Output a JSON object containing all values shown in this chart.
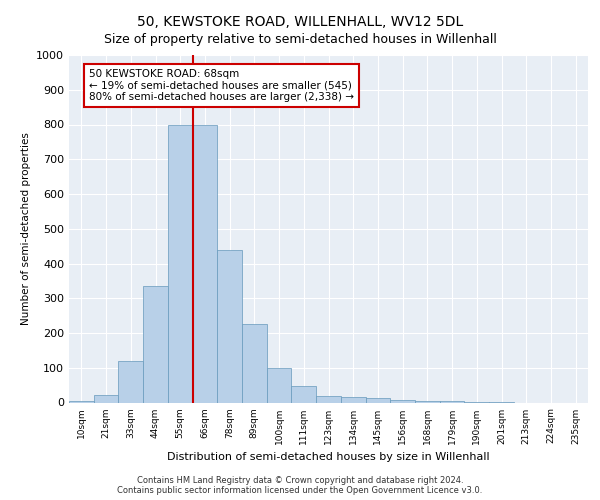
{
  "title_line1": "50, KEWSTOKE ROAD, WILLENHALL, WV12 5DL",
  "title_line2": "Size of property relative to semi-detached houses in Willenhall",
  "xlabel": "Distribution of semi-detached houses by size in Willenhall",
  "ylabel": "Number of semi-detached properties",
  "footer_line1": "Contains HM Land Registry data © Crown copyright and database right 2024.",
  "footer_line2": "Contains public sector information licensed under the Open Government Licence v3.0.",
  "annotation_title": "50 KEWSTOKE ROAD: 68sqm",
  "annotation_line1": "← 19% of semi-detached houses are smaller (545)",
  "annotation_line2": "80% of semi-detached houses are larger (2,338) →",
  "bar_categories": [
    "10sqm",
    "21sqm",
    "33sqm",
    "44sqm",
    "55sqm",
    "66sqm",
    "78sqm",
    "89sqm",
    "100sqm",
    "111sqm",
    "123sqm",
    "134sqm",
    "145sqm",
    "156sqm",
    "168sqm",
    "179sqm",
    "190sqm",
    "201sqm",
    "213sqm",
    "224sqm",
    "235sqm"
  ],
  "bar_heights": [
    5,
    22,
    120,
    335,
    800,
    800,
    440,
    225,
    100,
    48,
    20,
    15,
    12,
    8,
    5,
    3,
    2,
    1,
    0,
    0,
    0
  ],
  "bar_color": "#b8d0e8",
  "bar_edge_color": "#6699bb",
  "vline_color": "#cc0000",
  "annotation_box_color": "#cc0000",
  "bg_color": "#e8eef5",
  "grid_color": "#ffffff",
  "ylim": [
    0,
    1000
  ],
  "yticks": [
    0,
    100,
    200,
    300,
    400,
    500,
    600,
    700,
    800,
    900,
    1000
  ],
  "vline_index": 5,
  "title1_fontsize": 10,
  "title2_fontsize": 9,
  "title1_bold": false
}
